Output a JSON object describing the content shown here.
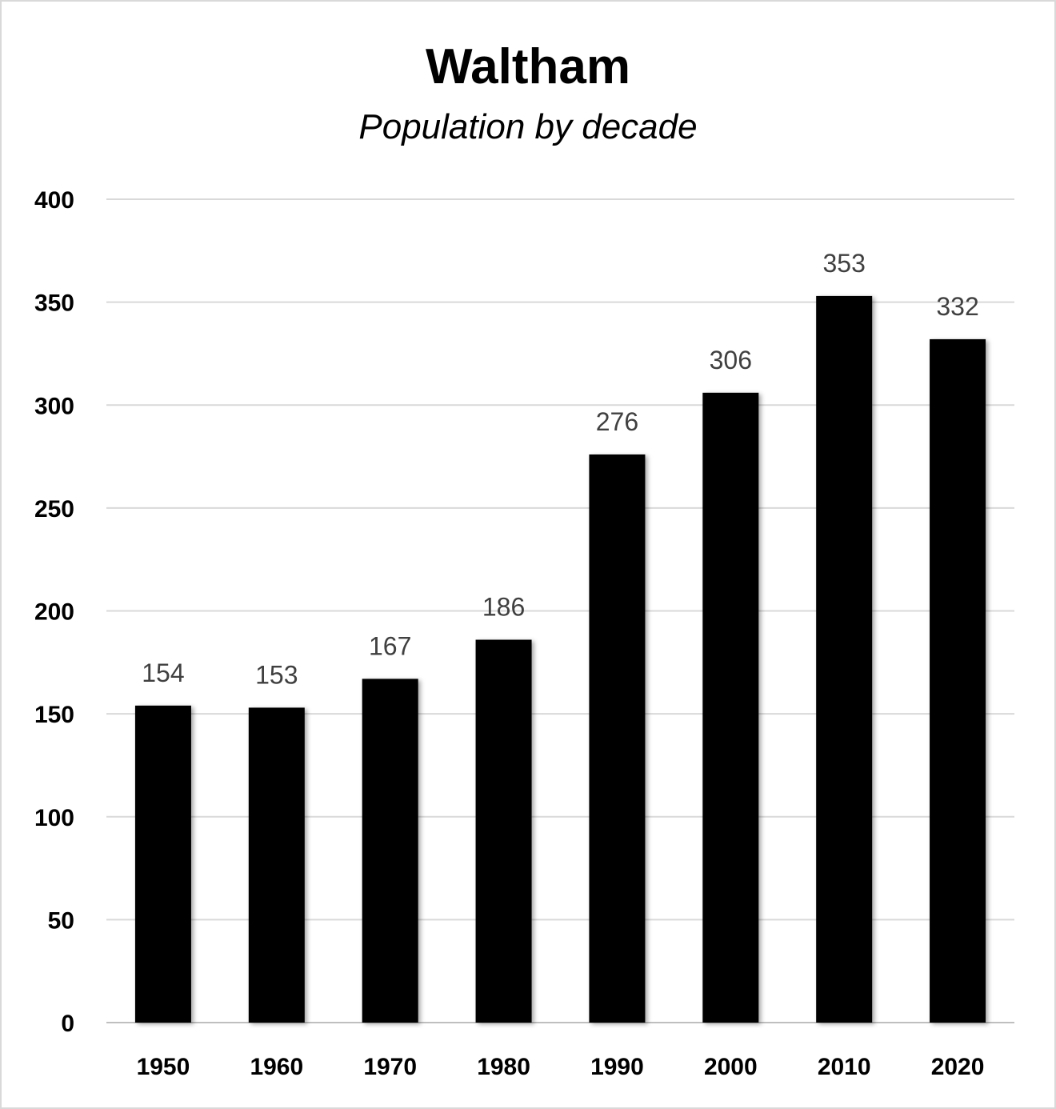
{
  "chart_data": {
    "type": "bar",
    "title": "Waltham",
    "subtitle": "Population by decade",
    "xlabel": "",
    "ylabel": "",
    "categories": [
      "1950",
      "1960",
      "1970",
      "1980",
      "1990",
      "2000",
      "2010",
      "2020"
    ],
    "values": [
      154,
      153,
      167,
      186,
      276,
      306,
      353,
      332
    ],
    "ylim": [
      0,
      400
    ],
    "yticks": [
      0,
      50,
      100,
      150,
      200,
      250,
      300,
      350,
      400
    ],
    "grid": true,
    "data_labels": true,
    "bar_color": "#000000",
    "gridline_color": "#d9d9d9",
    "data_label_color": "#404040"
  }
}
